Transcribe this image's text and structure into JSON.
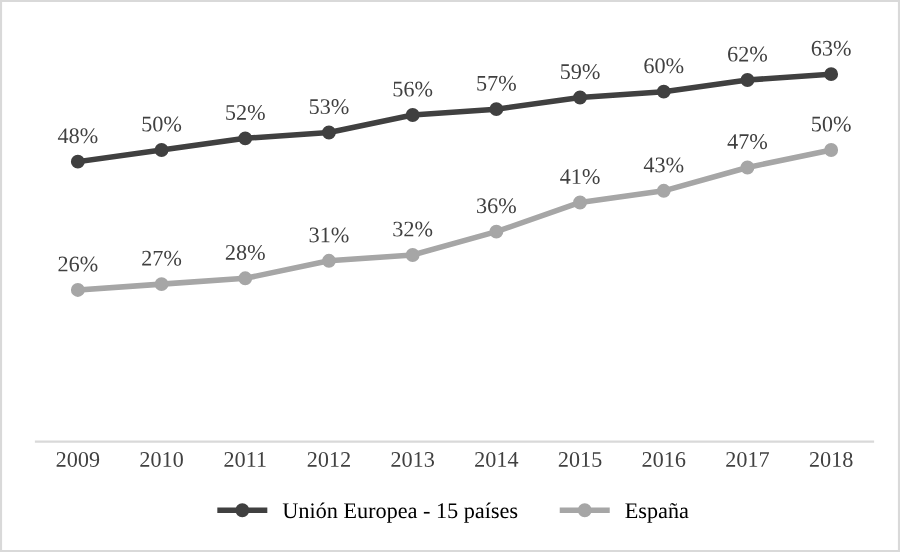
{
  "chart_data": {
    "type": "line",
    "categories": [
      "2009",
      "2010",
      "2011",
      "2012",
      "2013",
      "2014",
      "2015",
      "2016",
      "2017",
      "2018"
    ],
    "series": [
      {
        "name": "Unión Europea - 15 países",
        "color": "#404040",
        "values": [
          48,
          50,
          52,
          53,
          56,
          57,
          59,
          60,
          62,
          63
        ],
        "value_labels": [
          "48%",
          "50%",
          "52%",
          "53%",
          "56%",
          "57%",
          "59%",
          "60%",
          "62%",
          "63%"
        ]
      },
      {
        "name": "España",
        "color": "#a6a6a6",
        "values": [
          26,
          27,
          28,
          31,
          32,
          36,
          41,
          43,
          47,
          50
        ],
        "value_labels": [
          "26%",
          "27%",
          "28%",
          "31%",
          "32%",
          "36%",
          "41%",
          "43%",
          "47%",
          "50%"
        ]
      }
    ],
    "tick_labels": "x",
    "marker": "circle",
    "line_style": "solid",
    "legend": "bottom"
  }
}
